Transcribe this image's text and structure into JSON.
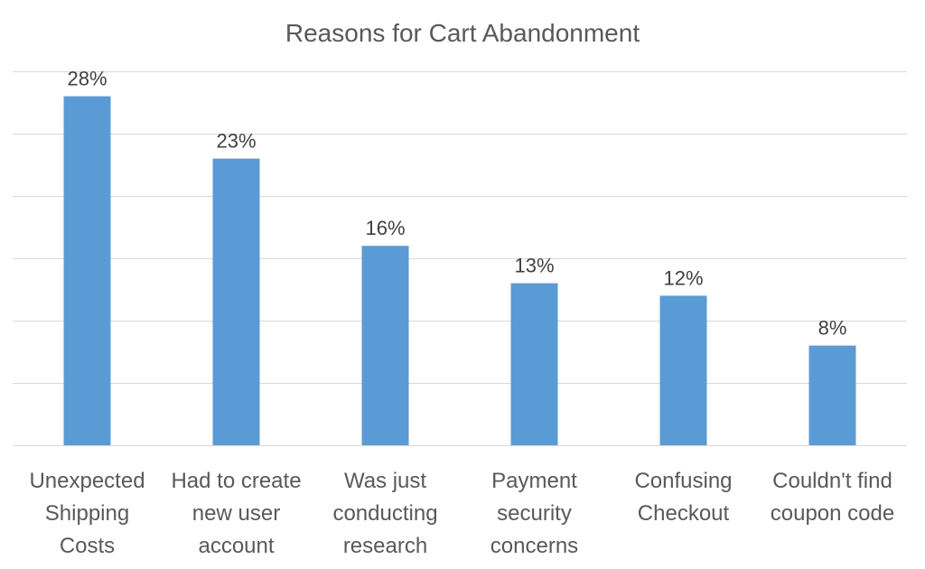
{
  "chart_data": {
    "type": "bar",
    "title": "Reasons for Cart Abandonment",
    "categories": [
      [
        "Unexpected",
        "Shipping",
        "Costs"
      ],
      [
        "Had to create",
        "new user",
        "account"
      ],
      [
        "Was just",
        "conducting",
        "research"
      ],
      [
        "Payment",
        "security",
        "concerns"
      ],
      [
        "Confusing",
        "Checkout"
      ],
      [
        "Couldn't find",
        "coupon code"
      ]
    ],
    "values": [
      28,
      23,
      16,
      13,
      12,
      8
    ],
    "value_labels": [
      "28%",
      "23%",
      "16%",
      "13%",
      "12%",
      "8%"
    ],
    "xlabel": "",
    "ylabel": "",
    "ylim": [
      0,
      30
    ],
    "gridlines": [
      0,
      5,
      10,
      15,
      20,
      25,
      30
    ],
    "grid": true,
    "legend": "none",
    "colors": {
      "bar": "#5b9bd5",
      "grid": "#d9d9d9",
      "title": "#595959",
      "label": "#404040"
    }
  }
}
